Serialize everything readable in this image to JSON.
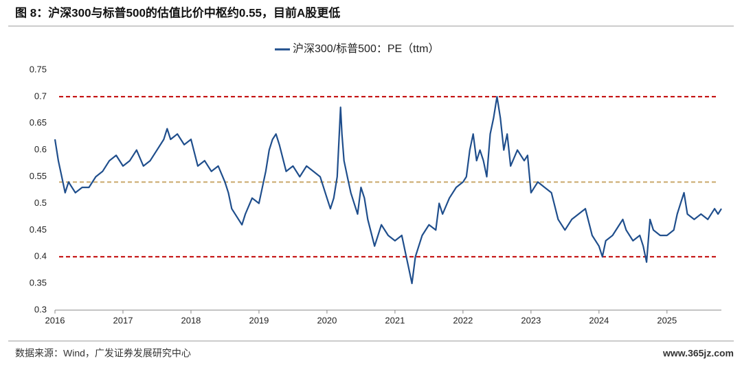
{
  "chart_data": {
    "type": "line",
    "title": "图 8：沪深300与标普500的估值比价中枢约0.55，目前A股更低",
    "source": "数据来源：Wind，广发证券发展研究中心",
    "watermark": "www.365jz.com",
    "xlim": [
      2016,
      2025.8
    ],
    "xticks": [
      2016,
      2017,
      2018,
      2019,
      2020,
      2021,
      2022,
      2023,
      2024,
      2025
    ],
    "ylim": [
      0.3,
      0.75
    ],
    "yticks": [
      0.3,
      0.35,
      0.4,
      0.45,
      0.5,
      0.55,
      0.6,
      0.65,
      0.7,
      0.75
    ],
    "legend": "top",
    "reference_lines": [
      {
        "value": 0.7,
        "color": "#c00000"
      },
      {
        "value": 0.54,
        "color": "#c9a86a"
      },
      {
        "value": 0.4,
        "color": "#c00000"
      }
    ],
    "x": [
      2016.0,
      2016.05,
      2016.1,
      2016.15,
      2016.2,
      2016.3,
      2016.4,
      2016.5,
      2016.6,
      2016.7,
      2016.8,
      2016.9,
      2017.0,
      2017.1,
      2017.2,
      2017.3,
      2017.4,
      2017.5,
      2017.6,
      2017.65,
      2017.7,
      2017.8,
      2017.9,
      2018.0,
      2018.1,
      2018.2,
      2018.3,
      2018.4,
      2018.5,
      2018.55,
      2018.6,
      2018.7,
      2018.75,
      2018.8,
      2018.9,
      2019.0,
      2019.1,
      2019.15,
      2019.2,
      2019.25,
      2019.3,
      2019.4,
      2019.5,
      2019.6,
      2019.7,
      2019.8,
      2019.9,
      2020.0,
      2020.05,
      2020.1,
      2020.15,
      2020.2,
      2020.22,
      2020.25,
      2020.3,
      2020.35,
      2020.4,
      2020.45,
      2020.5,
      2020.55,
      2020.6,
      2020.7,
      2020.75,
      2020.8,
      2020.9,
      2021.0,
      2021.1,
      2021.15,
      2021.2,
      2021.25,
      2021.3,
      2021.4,
      2021.5,
      2021.6,
      2021.65,
      2021.7,
      2021.8,
      2021.9,
      2022.0,
      2022.05,
      2022.1,
      2022.15,
      2022.2,
      2022.25,
      2022.3,
      2022.35,
      2022.4,
      2022.45,
      2022.5,
      2022.55,
      2022.6,
      2022.65,
      2022.7,
      2022.8,
      2022.9,
      2022.95,
      2023.0,
      2023.05,
      2023.1,
      2023.2,
      2023.3,
      2023.4,
      2023.5,
      2023.6,
      2023.7,
      2023.8,
      2023.9,
      2024.0,
      2024.05,
      2024.1,
      2024.2,
      2024.3,
      2024.35,
      2024.4,
      2024.5,
      2024.6,
      2024.65,
      2024.7,
      2024.75,
      2024.8,
      2024.9,
      2025.0,
      2025.1,
      2025.15,
      2025.2,
      2025.25,
      2025.3,
      2025.4,
      2025.5,
      2025.6,
      2025.7,
      2025.75,
      2025.8
    ],
    "series": [
      {
        "name": "沪深300/标普500：PE（ttm）",
        "color": "#1f4e8c",
        "values": [
          0.62,
          0.58,
          0.55,
          0.52,
          0.54,
          0.52,
          0.53,
          0.53,
          0.55,
          0.56,
          0.58,
          0.59,
          0.57,
          0.58,
          0.6,
          0.57,
          0.58,
          0.6,
          0.62,
          0.64,
          0.62,
          0.63,
          0.61,
          0.62,
          0.57,
          0.58,
          0.56,
          0.57,
          0.54,
          0.52,
          0.49,
          0.47,
          0.46,
          0.48,
          0.51,
          0.5,
          0.56,
          0.6,
          0.62,
          0.63,
          0.61,
          0.56,
          0.57,
          0.55,
          0.57,
          0.56,
          0.55,
          0.51,
          0.49,
          0.51,
          0.55,
          0.68,
          0.63,
          0.58,
          0.55,
          0.52,
          0.5,
          0.48,
          0.53,
          0.51,
          0.47,
          0.42,
          0.44,
          0.46,
          0.44,
          0.43,
          0.44,
          0.41,
          0.38,
          0.35,
          0.4,
          0.44,
          0.46,
          0.45,
          0.5,
          0.48,
          0.51,
          0.53,
          0.54,
          0.55,
          0.6,
          0.63,
          0.58,
          0.6,
          0.58,
          0.55,
          0.63,
          0.66,
          0.7,
          0.66,
          0.6,
          0.63,
          0.57,
          0.6,
          0.58,
          0.59,
          0.52,
          0.53,
          0.54,
          0.53,
          0.52,
          0.47,
          0.45,
          0.47,
          0.48,
          0.49,
          0.44,
          0.42,
          0.4,
          0.43,
          0.44,
          0.46,
          0.47,
          0.45,
          0.43,
          0.44,
          0.42,
          0.39,
          0.47,
          0.45,
          0.44,
          0.44,
          0.45,
          0.48,
          0.5,
          0.52,
          0.48,
          0.47,
          0.48,
          0.47,
          0.49,
          0.48,
          0.49
        ]
      }
    ]
  }
}
